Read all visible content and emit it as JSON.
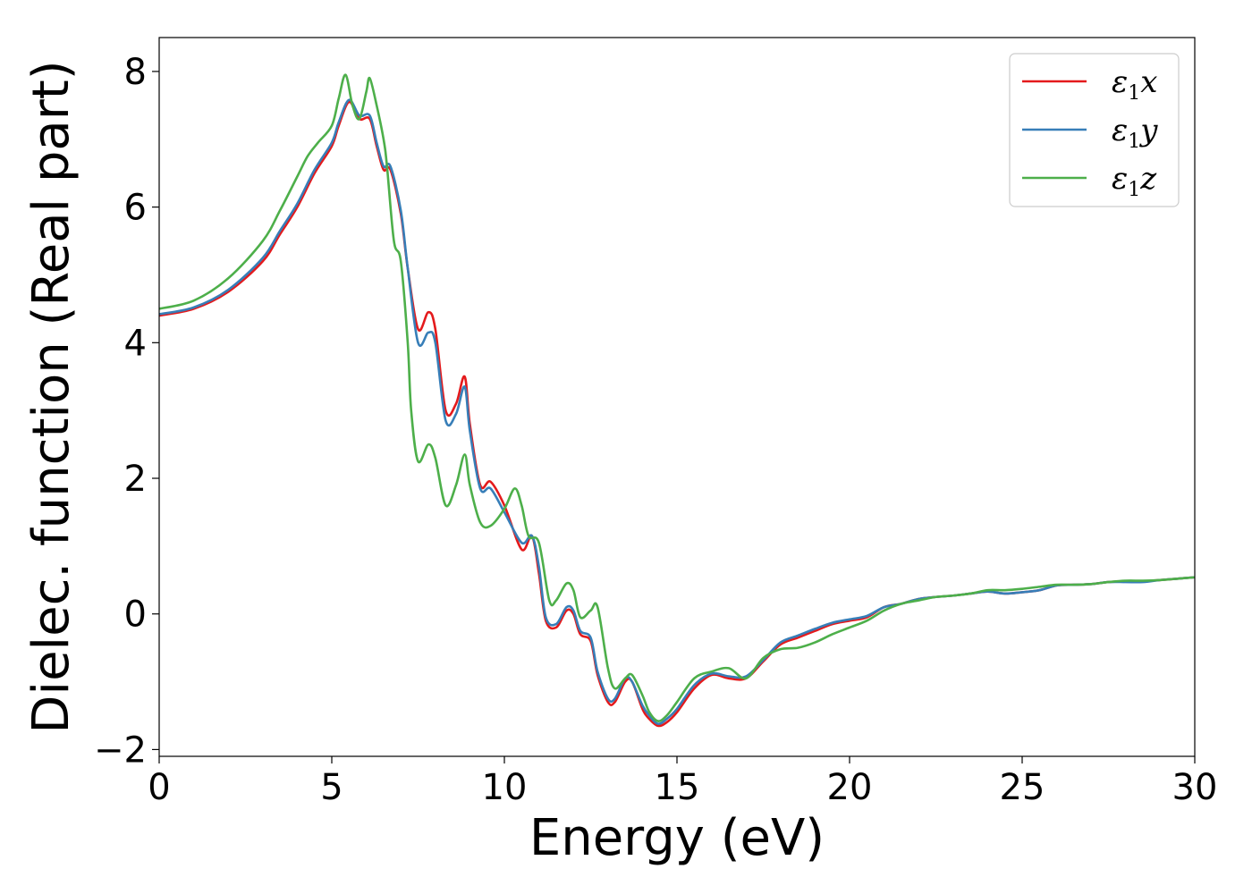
{
  "chart_data": {
    "type": "line",
    "title": "",
    "xlabel": "Energy (eV)",
    "ylabel": "Dielec. function (Real part)",
    "xlim": [
      0,
      30
    ],
    "ylim": [
      -2.1,
      8.5
    ],
    "xticks": [
      0,
      5,
      10,
      15,
      20,
      25,
      30
    ],
    "yticks": [
      -2,
      0,
      2,
      4,
      6,
      8
    ],
    "xtick_labels": [
      "0",
      "5",
      "10",
      "15",
      "20",
      "25",
      "30"
    ],
    "ytick_labels": [
      "−2",
      "0",
      "2",
      "4",
      "6",
      "8"
    ],
    "grid": false,
    "legend_position": "top-right",
    "series": [
      {
        "name": "ε1x",
        "legend_base": "ε",
        "legend_sub": "1",
        "legend_var": "x",
        "color": "#e41a1c",
        "x": [
          0,
          1,
          2,
          3,
          3.5,
          4,
          4.5,
          5,
          5.2,
          5.5,
          5.8,
          6.1,
          6.3,
          6.5,
          6.7,
          7.0,
          7.2,
          7.5,
          7.8,
          8.0,
          8.3,
          8.6,
          8.85,
          9.0,
          9.3,
          9.6,
          10.0,
          10.5,
          10.8,
          11.0,
          11.2,
          11.5,
          11.8,
          12.0,
          12.2,
          12.5,
          12.7,
          13.0,
          13.2,
          13.5,
          13.7,
          14.0,
          14.2,
          14.45,
          14.7,
          15.0,
          15.5,
          16.0,
          16.5,
          17.0,
          17.5,
          18.0,
          18.5,
          19.0,
          19.5,
          20.0,
          20.5,
          21.0,
          21.5,
          22.0,
          22.5,
          23.0,
          23.5,
          24.0,
          24.5,
          25.0,
          25.5,
          26.0,
          26.5,
          27.0,
          27.5,
          28.0,
          28.5,
          29.0,
          29.5,
          30.0
        ],
        "y": [
          4.4,
          4.5,
          4.75,
          5.2,
          5.6,
          6.0,
          6.5,
          6.9,
          7.2,
          7.55,
          7.3,
          7.3,
          6.9,
          6.55,
          6.55,
          5.9,
          5.1,
          4.2,
          4.45,
          4.2,
          3.0,
          3.1,
          3.5,
          2.8,
          1.9,
          1.95,
          1.6,
          0.95,
          1.15,
          0.6,
          -0.1,
          -0.2,
          0.05,
          0.0,
          -0.3,
          -0.4,
          -0.9,
          -1.3,
          -1.3,
          -1.0,
          -1.0,
          -1.4,
          -1.55,
          -1.65,
          -1.6,
          -1.45,
          -1.1,
          -0.9,
          -0.95,
          -0.95,
          -0.7,
          -0.45,
          -0.35,
          -0.25,
          -0.15,
          -0.1,
          -0.05,
          0.1,
          0.15,
          0.22,
          0.25,
          0.27,
          0.3,
          0.33,
          0.3,
          0.32,
          0.35,
          0.42,
          0.43,
          0.44,
          0.47,
          0.48,
          0.48,
          0.5,
          0.52,
          0.54
        ]
      },
      {
        "name": "ε1y",
        "legend_base": "ε",
        "legend_sub": "1",
        "legend_var": "y",
        "color": "#377eb8",
        "x": [
          0,
          1,
          2,
          3,
          3.5,
          4,
          4.5,
          5,
          5.2,
          5.5,
          5.8,
          6.1,
          6.3,
          6.5,
          6.7,
          7.0,
          7.2,
          7.5,
          7.8,
          8.0,
          8.3,
          8.6,
          8.85,
          9.0,
          9.3,
          9.6,
          10.0,
          10.5,
          10.8,
          11.0,
          11.2,
          11.5,
          11.8,
          12.0,
          12.2,
          12.5,
          12.7,
          13.0,
          13.2,
          13.5,
          13.7,
          14.0,
          14.2,
          14.45,
          14.7,
          15.0,
          15.5,
          16.0,
          16.5,
          17.0,
          17.5,
          18.0,
          18.5,
          19.0,
          19.5,
          20.0,
          20.5,
          21.0,
          21.5,
          22.0,
          22.5,
          23.0,
          23.5,
          24.0,
          24.5,
          25.0,
          25.5,
          26.0,
          26.5,
          27.0,
          27.5,
          28.0,
          28.5,
          29.0,
          29.5,
          30.0
        ],
        "y": [
          4.42,
          4.52,
          4.78,
          5.25,
          5.65,
          6.05,
          6.55,
          6.95,
          7.25,
          7.58,
          7.35,
          7.35,
          6.95,
          6.6,
          6.6,
          5.95,
          5.1,
          4.0,
          4.15,
          4.0,
          2.85,
          2.95,
          3.35,
          2.7,
          1.85,
          1.85,
          1.5,
          1.05,
          1.15,
          0.7,
          -0.05,
          -0.15,
          0.1,
          0.05,
          -0.25,
          -0.35,
          -0.85,
          -1.25,
          -1.25,
          -0.95,
          -1.0,
          -1.35,
          -1.5,
          -1.62,
          -1.55,
          -1.4,
          -1.05,
          -0.88,
          -0.92,
          -0.92,
          -0.68,
          -0.42,
          -0.32,
          -0.22,
          -0.13,
          -0.08,
          -0.03,
          0.1,
          0.15,
          0.22,
          0.25,
          0.27,
          0.3,
          0.33,
          0.3,
          0.32,
          0.35,
          0.42,
          0.43,
          0.44,
          0.47,
          0.47,
          0.47,
          0.5,
          0.52,
          0.54
        ]
      },
      {
        "name": "ε1z",
        "legend_base": "ε",
        "legend_sub": "1",
        "legend_var": "z",
        "color": "#4daf4a",
        "x": [
          0,
          1,
          2,
          3,
          3.5,
          4,
          4.3,
          4.6,
          5.0,
          5.2,
          5.4,
          5.6,
          5.8,
          6.0,
          6.1,
          6.3,
          6.5,
          6.6,
          6.8,
          7.0,
          7.2,
          7.3,
          7.5,
          7.8,
          8.0,
          8.3,
          8.6,
          8.85,
          9.0,
          9.3,
          9.6,
          10.0,
          10.3,
          10.5,
          10.7,
          11.0,
          11.3,
          11.5,
          11.8,
          12.0,
          12.2,
          12.5,
          12.7,
          13.0,
          13.2,
          13.5,
          13.7,
          14.0,
          14.2,
          14.45,
          14.7,
          15.0,
          15.5,
          16.0,
          16.5,
          17.0,
          17.5,
          18.0,
          18.5,
          19.0,
          19.5,
          20.0,
          20.5,
          21.0,
          21.5,
          22.0,
          22.5,
          23.0,
          23.5,
          24.0,
          24.5,
          25.0,
          25.5,
          26.0,
          26.5,
          27.0,
          27.5,
          28.0,
          28.5,
          29.0,
          29.5,
          30.0
        ],
        "y": [
          4.5,
          4.62,
          4.95,
          5.5,
          5.95,
          6.45,
          6.75,
          6.95,
          7.2,
          7.6,
          7.95,
          7.5,
          7.3,
          7.7,
          7.9,
          7.5,
          7.0,
          6.6,
          5.5,
          5.2,
          4.0,
          3.0,
          2.25,
          2.5,
          2.3,
          1.6,
          1.9,
          2.35,
          1.9,
          1.35,
          1.3,
          1.55,
          1.85,
          1.6,
          1.15,
          1.05,
          0.2,
          0.2,
          0.45,
          0.35,
          -0.05,
          0.05,
          0.1,
          -0.8,
          -1.1,
          -0.95,
          -0.9,
          -1.2,
          -1.45,
          -1.58,
          -1.5,
          -1.3,
          -0.95,
          -0.85,
          -0.8,
          -0.95,
          -0.65,
          -0.52,
          -0.5,
          -0.42,
          -0.3,
          -0.2,
          -0.1,
          0.05,
          0.15,
          0.2,
          0.25,
          0.27,
          0.3,
          0.35,
          0.35,
          0.37,
          0.4,
          0.43,
          0.43,
          0.44,
          0.47,
          0.49,
          0.49,
          0.5,
          0.52,
          0.54
        ]
      }
    ]
  }
}
